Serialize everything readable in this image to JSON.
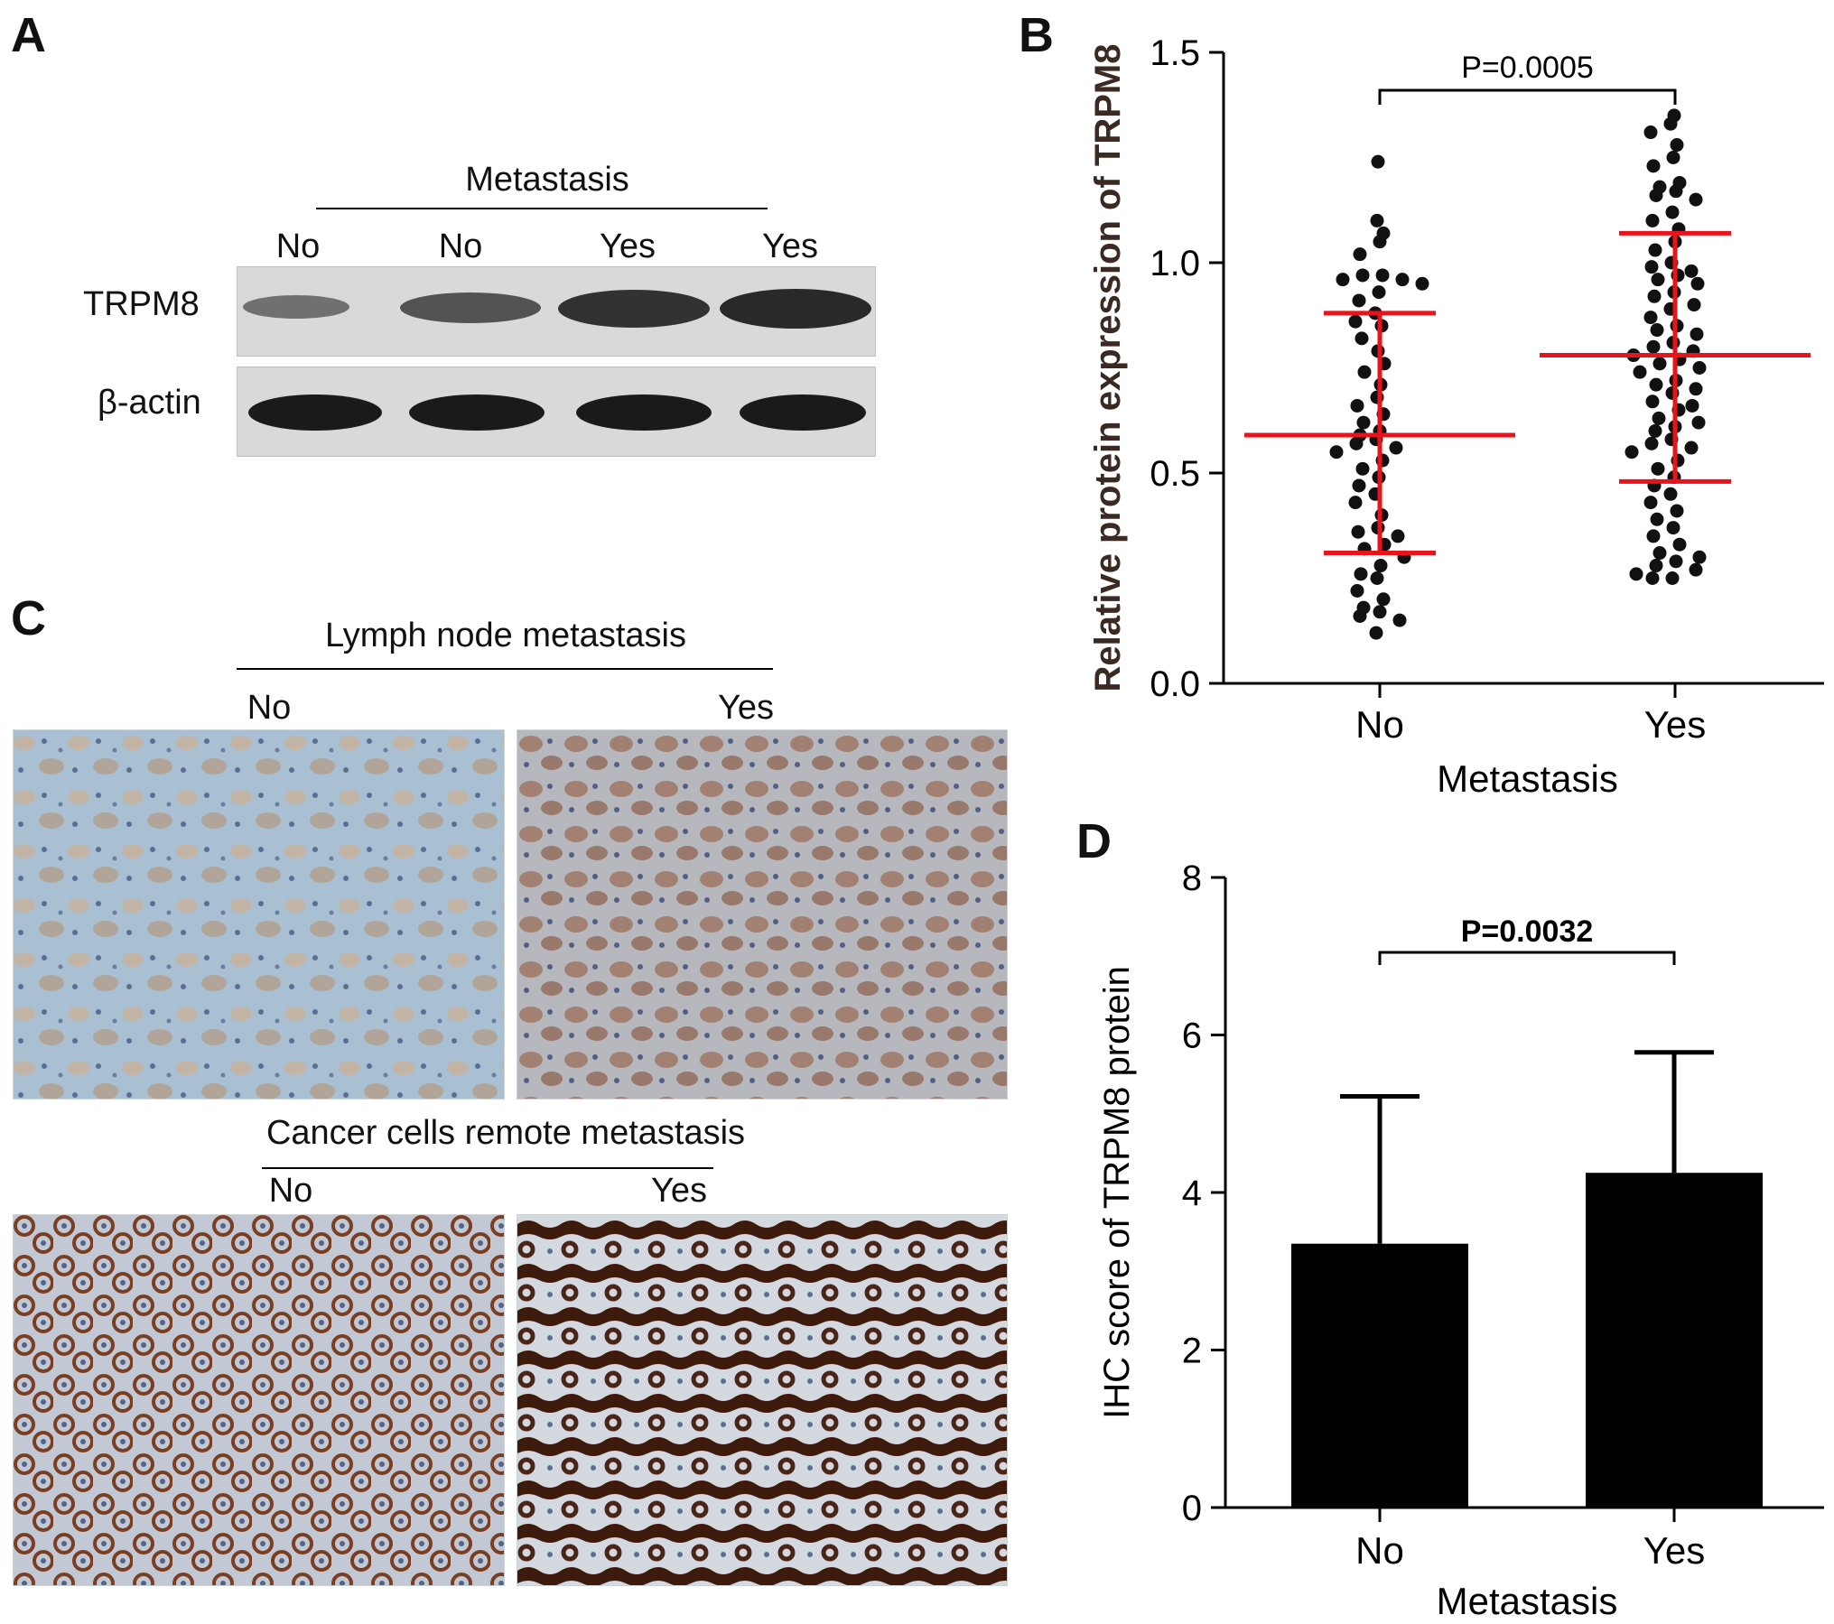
{
  "figure": {
    "panels": {
      "A": {
        "letter": "A",
        "group_label": "Metastasis",
        "lanes": [
          "No",
          "No",
          "Yes",
          "Yes"
        ],
        "rows": [
          "TRPM8",
          "β-actin"
        ],
        "band_intensity": {
          "TRPM8": [
            0.45,
            0.65,
            0.85,
            0.9
          ],
          "beta_actin": [
            1,
            1,
            1,
            1
          ]
        }
      },
      "B": {
        "letter": "B"
      },
      "C": {
        "letter": "C",
        "top_label": "Lymph node metastasis",
        "top_columns": [
          "No",
          "Yes"
        ],
        "bottom_label": "Cancer cells remote metastasis",
        "bottom_columns": [
          "No",
          "Yes"
        ],
        "colors": {
          "stain_light": "#c9b9a6",
          "stain_dark": "#4a2414",
          "hematoxylin": "#9db3c9"
        }
      },
      "D": {
        "letter": "D"
      }
    }
  },
  "chart_data": [
    {
      "id": "B",
      "type": "scatter",
      "ylabel": "Relative protein expression of TRPM8",
      "xlabel": "Metastasis",
      "categories": [
        "No",
        "Yes"
      ],
      "ylim": [
        0,
        1.5
      ],
      "yticks": [
        "0.0",
        "0.5",
        "1.0",
        "1.5"
      ],
      "yticks_values": [
        0,
        0.5,
        1.0,
        1.5
      ],
      "significance": "P=0.0005",
      "colors": {
        "points": "#111111",
        "summary": "#e8141b"
      },
      "series": [
        {
          "category": "No",
          "mean": 0.59,
          "sd_low": 0.31,
          "sd_high": 0.88,
          "values": [
            1.24,
            1.1,
            1.07,
            1.05,
            1.02,
            0.97,
            0.97,
            0.96,
            0.96,
            0.95,
            0.93,
            0.91,
            0.88,
            0.86,
            0.85,
            0.82,
            0.79,
            0.76,
            0.74,
            0.71,
            0.68,
            0.66,
            0.64,
            0.62,
            0.6,
            0.59,
            0.58,
            0.57,
            0.56,
            0.55,
            0.53,
            0.51,
            0.49,
            0.47,
            0.45,
            0.43,
            0.4,
            0.37,
            0.36,
            0.35,
            0.33,
            0.32,
            0.3,
            0.28,
            0.26,
            0.25,
            0.22,
            0.2,
            0.18,
            0.17,
            0.16,
            0.15,
            0.12
          ]
        },
        {
          "category": "Yes",
          "mean": 0.78,
          "sd_low": 0.48,
          "sd_high": 1.07,
          "values": [
            1.35,
            1.33,
            1.31,
            1.28,
            1.25,
            1.23,
            1.19,
            1.18,
            1.17,
            1.16,
            1.15,
            1.12,
            1.1,
            1.08,
            1.05,
            1.03,
            1.0,
            0.99,
            0.98,
            0.97,
            0.96,
            0.95,
            0.93,
            0.92,
            0.9,
            0.89,
            0.87,
            0.85,
            0.84,
            0.83,
            0.81,
            0.8,
            0.79,
            0.78,
            0.77,
            0.76,
            0.75,
            0.74,
            0.72,
            0.71,
            0.7,
            0.69,
            0.67,
            0.66,
            0.65,
            0.63,
            0.62,
            0.61,
            0.6,
            0.58,
            0.57,
            0.56,
            0.55,
            0.53,
            0.51,
            0.49,
            0.47,
            0.45,
            0.43,
            0.41,
            0.39,
            0.37,
            0.35,
            0.33,
            0.31,
            0.3,
            0.29,
            0.28,
            0.27,
            0.26,
            0.25,
            0.25
          ]
        }
      ]
    },
    {
      "id": "D",
      "type": "bar",
      "ylabel": "IHC score of TRPM8 protein",
      "xlabel": "Metastasis",
      "categories": [
        "No",
        "Yes"
      ],
      "values": [
        3.35,
        4.25
      ],
      "errors_upper": [
        5.22,
        5.78
      ],
      "ylim": [
        0,
        8
      ],
      "yticks": [
        "0",
        "2",
        "4",
        "6",
        "8"
      ],
      "yticks_values": [
        0,
        2,
        4,
        6,
        8
      ],
      "significance": "P=0.0032",
      "colors": {
        "bars": "#000000"
      }
    }
  ]
}
